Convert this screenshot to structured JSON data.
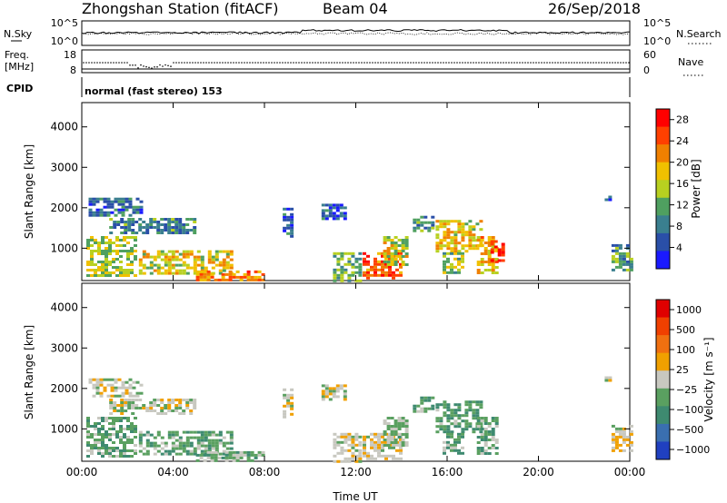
{
  "header": {
    "station_title": "Zhongshan Station (fitACF)",
    "beam": "Beam 04",
    "date": "26/Sep/2018"
  },
  "noise_panel": {
    "left_label": "N.Sky",
    "left_ticks": [
      "10^5",
      "10^0"
    ],
    "right_label": "N.Search",
    "right_ticks": [
      "10^5",
      "10^0"
    ]
  },
  "freq_panel": {
    "left_label_line1": "Freq.",
    "left_label_line2": "[MHz]",
    "left_ticks": [
      "18",
      "8"
    ],
    "right_label": "Nave",
    "right_ticks": [
      "60",
      "0"
    ]
  },
  "cpid": {
    "label": "CPID",
    "value": "normal (fast stereo) 153"
  },
  "chart_data": [
    {
      "type": "heatmap",
      "title": "",
      "xlabel": "Time UT",
      "ylabel": "Slant Range [km]",
      "x_ticks": [
        "00:00",
        "04:00",
        "08:00",
        "12:00",
        "16:00",
        "20:00",
        "00:00"
      ],
      "x_range_hours": [
        0,
        24
      ],
      "y_ticks": [
        1000,
        2000,
        3000,
        4000
      ],
      "ylim": [
        200,
        4600
      ],
      "colorbar": {
        "label": "Power [dB]",
        "ticks": [
          "4",
          "8",
          "12",
          "16",
          "20",
          "24",
          "28"
        ],
        "range": [
          0,
          30
        ]
      },
      "colors": [
        "#1a1aff",
        "#2a4fa8",
        "#3a7f8f",
        "#4fa060",
        "#b8d020",
        "#f0c000",
        "#f08000",
        "#ff4000",
        "#ff0000"
      ]
    },
    {
      "type": "heatmap",
      "title": "",
      "xlabel": "Time UT",
      "ylabel": "Slant Range [km]",
      "x_ticks": [
        "00:00",
        "04:00",
        "08:00",
        "12:00",
        "16:00",
        "20:00",
        "00:00"
      ],
      "x_range_hours": [
        0,
        24
      ],
      "y_ticks": [
        1000,
        2000,
        3000,
        4000
      ],
      "ylim": [
        200,
        4600
      ],
      "colorbar": {
        "label": "Velocity [m s⁻¹]",
        "ticks": [
          "1000",
          "500",
          "100",
          "25",
          "−25",
          "−100",
          "−500",
          "−1000"
        ],
        "range": [
          -1200,
          1200
        ]
      },
      "colors": [
        "#2040c0",
        "#3a6fb0",
        "#3e8a70",
        "#5aa060",
        "#c8c8c0",
        "#f0a000",
        "#f07010",
        "#f04000",
        "#e00000"
      ]
    }
  ],
  "echo_regions": [
    {
      "panel": 0,
      "t0": 0.3,
      "t1": 2.6,
      "r0": 1800,
      "r1": 2250,
      "v": 7
    },
    {
      "panel": 0,
      "t0": 1.2,
      "t1": 5.0,
      "r0": 1350,
      "r1": 1750,
      "v": 9
    },
    {
      "panel": 0,
      "t0": 0.2,
      "t1": 2.4,
      "r0": 300,
      "r1": 1300,
      "v": 15
    },
    {
      "panel": 0,
      "t0": 2.5,
      "t1": 6.5,
      "r0": 350,
      "r1": 950,
      "v": 17
    },
    {
      "panel": 0,
      "t0": 5.0,
      "t1": 8.0,
      "r0": 220,
      "r1": 450,
      "v": 22
    },
    {
      "panel": 0,
      "t0": 8.8,
      "t1": 9.2,
      "r0": 1300,
      "r1": 2000,
      "v": 6
    },
    {
      "panel": 0,
      "t0": 10.5,
      "t1": 11.5,
      "r0": 1700,
      "r1": 2100,
      "v": 6
    },
    {
      "panel": 0,
      "t0": 11.0,
      "t1": 12.2,
      "r0": 200,
      "r1": 900,
      "v": 12
    },
    {
      "panel": 0,
      "t0": 12.3,
      "t1": 14.0,
      "r0": 250,
      "r1": 900,
      "v": 24
    },
    {
      "panel": 0,
      "t0": 13.2,
      "t1": 14.2,
      "r0": 600,
      "r1": 1300,
      "v": 16
    },
    {
      "panel": 0,
      "t0": 14.5,
      "t1": 15.3,
      "r0": 1400,
      "r1": 1800,
      "v": 9
    },
    {
      "panel": 0,
      "t0": 15.5,
      "t1": 17.5,
      "r0": 900,
      "r1": 1700,
      "v": 18
    },
    {
      "panel": 0,
      "t0": 15.8,
      "t1": 16.6,
      "r0": 400,
      "r1": 900,
      "v": 14
    },
    {
      "panel": 0,
      "t0": 17.3,
      "t1": 18.2,
      "r0": 400,
      "r1": 1300,
      "v": 19
    },
    {
      "panel": 0,
      "t0": 17.9,
      "t1": 18.5,
      "r0": 700,
      "r1": 1200,
      "v": 28
    },
    {
      "panel": 0,
      "t0": 22.9,
      "t1": 23.2,
      "r0": 2100,
      "r1": 2300,
      "v": 7
    },
    {
      "panel": 0,
      "t0": 23.2,
      "t1": 24.0,
      "r0": 450,
      "r1": 1100,
      "v": 11
    },
    {
      "panel": 1,
      "t0": 0.3,
      "t1": 2.6,
      "r0": 1800,
      "r1": 2250,
      "v": 0
    },
    {
      "panel": 1,
      "t0": 1.2,
      "t1": 5.0,
      "r0": 1350,
      "r1": 1750,
      "v": 0
    },
    {
      "panel": 1,
      "t0": 0.2,
      "t1": 2.4,
      "r0": 300,
      "r1": 1300,
      "v": -300
    },
    {
      "panel": 1,
      "t0": 2.5,
      "t1": 6.5,
      "r0": 350,
      "r1": 950,
      "v": -300
    },
    {
      "panel": 1,
      "t0": 5.0,
      "t1": 8.0,
      "r0": 220,
      "r1": 450,
      "v": -250
    },
    {
      "panel": 1,
      "t0": 8.8,
      "t1": 9.2,
      "r0": 1300,
      "r1": 2000,
      "v": 0
    },
    {
      "panel": 1,
      "t0": 10.5,
      "t1": 11.5,
      "r0": 1700,
      "r1": 2100,
      "v": 0
    },
    {
      "panel": 1,
      "t0": 11.0,
      "t1": 12.2,
      "r0": 200,
      "r1": 900,
      "v": 60
    },
    {
      "panel": 1,
      "t0": 12.3,
      "t1": 14.0,
      "r0": 250,
      "r1": 900,
      "v": 80
    },
    {
      "panel": 1,
      "t0": 13.2,
      "t1": 14.2,
      "r0": 600,
      "r1": 1300,
      "v": -200
    },
    {
      "panel": 1,
      "t0": 14.5,
      "t1": 15.3,
      "r0": 1400,
      "r1": 1800,
      "v": -300
    },
    {
      "panel": 1,
      "t0": 15.5,
      "t1": 17.5,
      "r0": 900,
      "r1": 1700,
      "v": -350
    },
    {
      "panel": 1,
      "t0": 15.8,
      "t1": 16.6,
      "r0": 400,
      "r1": 900,
      "v": -300
    },
    {
      "panel": 1,
      "t0": 17.3,
      "t1": 18.2,
      "r0": 400,
      "r1": 1300,
      "v": -300
    },
    {
      "panel": 1,
      "t0": 22.9,
      "t1": 23.2,
      "r0": 2100,
      "r1": 2300,
      "v": 0
    },
    {
      "panel": 1,
      "t0": 23.2,
      "t1": 24.0,
      "r0": 450,
      "r1": 1100,
      "v": 60
    }
  ]
}
